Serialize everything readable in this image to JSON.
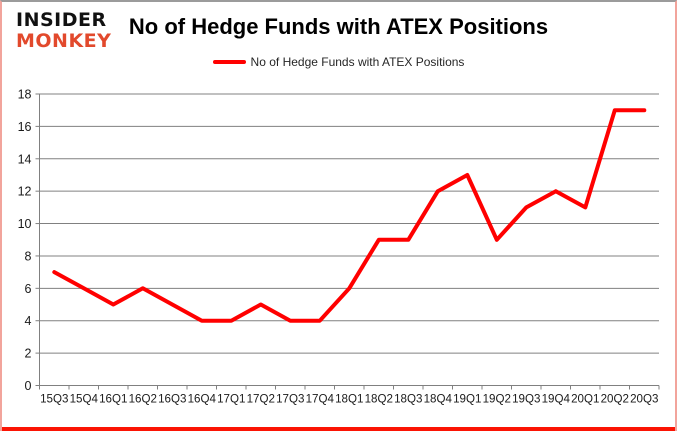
{
  "logo": {
    "line1": "INSIDER",
    "line2": "MONKEY",
    "line2_color": "#e2492c"
  },
  "header": {
    "title": "No of Hedge Funds with ATEX Positions"
  },
  "legend": {
    "label": "No of Hedge Funds with ATEX Positions"
  },
  "chart_data": {
    "type": "line",
    "title": "No of Hedge Funds with ATEX Positions",
    "xlabel": "",
    "ylabel": "",
    "categories": [
      "15Q3",
      "15Q4",
      "16Q1",
      "16Q2",
      "16Q3",
      "16Q4",
      "17Q1",
      "17Q2",
      "17Q3",
      "17Q4",
      "18Q1",
      "18Q2",
      "18Q3",
      "18Q4",
      "19Q1",
      "19Q2",
      "19Q3",
      "19Q4",
      "20Q1",
      "20Q2",
      "20Q3"
    ],
    "series": [
      {
        "name": "No of Hedge Funds with ATEX Positions",
        "color": "#ff0000",
        "values": [
          7,
          6,
          5,
          6,
          5,
          4,
          4,
          5,
          4,
          4,
          6,
          9,
          9,
          12,
          13,
          9,
          11,
          12,
          11,
          17,
          17
        ]
      }
    ],
    "ylim": [
      0,
      18
    ],
    "ytick_step": 2,
    "grid": "horizontal",
    "legend_position": "top",
    "colors": {
      "gridline": "#808080",
      "axis": "#808080",
      "tick_label": "#1a1a1a"
    }
  }
}
